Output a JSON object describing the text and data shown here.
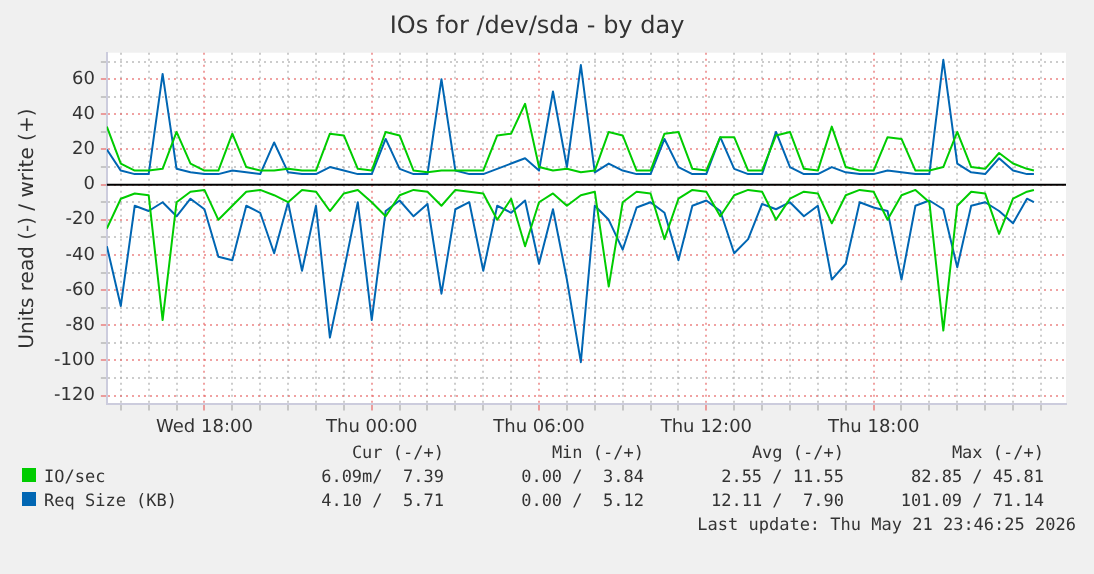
{
  "chart_data": {
    "type": "line",
    "title": "IOs for /dev/sda - by day",
    "ylabel": "Units read (-) / write (+)",
    "x": [
      "2026-05-20T14:30",
      "2026-05-20T15:00",
      "2026-05-20T15:30",
      "2026-05-20T16:00",
      "2026-05-20T16:30",
      "2026-05-20T17:00",
      "2026-05-20T17:30",
      "2026-05-20T18:00",
      "2026-05-20T18:30",
      "2026-05-20T19:00",
      "2026-05-20T19:30",
      "2026-05-20T20:00",
      "2026-05-20T20:30",
      "2026-05-20T21:00",
      "2026-05-20T21:30",
      "2026-05-20T22:00",
      "2026-05-20T22:30",
      "2026-05-20T23:00",
      "2026-05-20T23:30",
      "2026-05-21T00:00",
      "2026-05-21T00:30",
      "2026-05-21T01:00",
      "2026-05-21T01:30",
      "2026-05-21T02:00",
      "2026-05-21T02:30",
      "2026-05-21T03:00",
      "2026-05-21T03:30",
      "2026-05-21T04:00",
      "2026-05-21T04:30",
      "2026-05-21T05:00",
      "2026-05-21T05:30",
      "2026-05-21T06:00",
      "2026-05-21T06:30",
      "2026-05-21T07:00",
      "2026-05-21T07:30",
      "2026-05-21T08:00",
      "2026-05-21T08:30",
      "2026-05-21T09:00",
      "2026-05-21T09:30",
      "2026-05-21T10:00",
      "2026-05-21T10:30",
      "2026-05-21T11:00",
      "2026-05-21T11:30",
      "2026-05-21T12:00",
      "2026-05-21T12:30",
      "2026-05-21T13:00",
      "2026-05-21T13:30",
      "2026-05-21T14:00",
      "2026-05-21T14:30",
      "2026-05-21T15:00",
      "2026-05-21T15:30",
      "2026-05-21T16:00",
      "2026-05-21T16:30",
      "2026-05-21T17:00",
      "2026-05-21T17:30",
      "2026-05-21T18:00",
      "2026-05-21T18:30",
      "2026-05-21T19:00",
      "2026-05-21T19:30",
      "2026-05-21T20:00",
      "2026-05-21T20:30",
      "2026-05-21T21:00",
      "2026-05-21T21:30",
      "2026-05-21T22:00",
      "2026-05-21T22:30",
      "2026-05-21T23:00",
      "2026-05-21T23:30",
      "2026-05-21T23:45"
    ],
    "series": [
      {
        "name": "IO/sec",
        "color": "#00cc00",
        "values": [
          33,
          12,
          8,
          8,
          9,
          30,
          12,
          8,
          8,
          29,
          10,
          8,
          8,
          9,
          8,
          8,
          29,
          28,
          9,
          8,
          30,
          28,
          8,
          7,
          8,
          8,
          8,
          8,
          28,
          29,
          46,
          10,
          8,
          9,
          7,
          8,
          30,
          28,
          8,
          8,
          29,
          30,
          9,
          8,
          27,
          27,
          8,
          8,
          28,
          30,
          9,
          8,
          33,
          10,
          8,
          8,
          27,
          26,
          8,
          8,
          10,
          30,
          10,
          9,
          18,
          12,
          9,
          8
        ]
      },
      {
        "color": "#00cc00",
        "values": [
          -25,
          -8,
          -5,
          -6,
          -77,
          -10,
          -4,
          -3,
          -20,
          -12,
          -4,
          -3,
          -6,
          -10,
          -3,
          -4,
          -15,
          -5,
          -3,
          -10,
          -18,
          -6,
          -3,
          -4,
          -12,
          -3,
          -4,
          -5,
          -20,
          -8,
          -35,
          -10,
          -5,
          -12,
          -6,
          -4,
          -58,
          -10,
          -4,
          -5,
          -31,
          -8,
          -3,
          -4,
          -18,
          -6,
          -3,
          -4,
          -20,
          -8,
          -4,
          -5,
          -22,
          -6,
          -3,
          -4,
          -20,
          -6,
          -3,
          -10,
          -83,
          -12,
          -4,
          -5,
          -28,
          -8,
          -4,
          -3
        ]
      },
      {
        "name": "Req Size (KB)",
        "color": "#0066b3",
        "values": [
          20,
          8,
          6,
          6,
          63,
          9,
          7,
          6,
          6,
          8,
          7,
          6,
          24,
          7,
          6,
          6,
          10,
          8,
          6,
          6,
          26,
          9,
          6,
          6,
          60,
          8,
          6,
          6,
          9,
          12,
          15,
          8,
          53,
          10,
          68,
          7,
          12,
          8,
          6,
          6,
          26,
          10,
          6,
          6,
          27,
          9,
          6,
          6,
          30,
          10,
          6,
          6,
          10,
          7,
          6,
          6,
          8,
          7,
          6,
          6,
          71,
          12,
          7,
          6,
          15,
          8,
          6,
          6
        ]
      },
      {
        "color": "#0066b3",
        "values": [
          -35,
          -69,
          -12,
          -15,
          -10,
          -18,
          -8,
          -14,
          -41,
          -43,
          -12,
          -16,
          -39,
          -10,
          -49,
          -12,
          -87,
          -49,
          -10,
          -77,
          -15,
          -9,
          -18,
          -11,
          -62,
          -14,
          -10,
          -49,
          -12,
          -16,
          -9,
          -45,
          -14,
          -54,
          -101,
          -12,
          -20,
          -37,
          -13,
          -10,
          -16,
          -43,
          -12,
          -9,
          -15,
          -39,
          -31,
          -11,
          -14,
          -10,
          -18,
          -12,
          -54,
          -45,
          -10,
          -13,
          -15,
          -54,
          -12,
          -9,
          -14,
          -47,
          -12,
          -10,
          -15,
          -22,
          -8,
          -10
        ]
      }
    ],
    "xlim": [
      "2026-05-20T14:30",
      "2026-05-22T00:54"
    ],
    "xticks": [
      {
        "value": "2026-05-20T15:00",
        "label": null
      },
      {
        "value": "2026-05-20T16:00",
        "label": null
      },
      {
        "value": "2026-05-20T17:00",
        "label": null
      },
      {
        "value": "2026-05-20T18:00",
        "label": "Wed 18:00"
      },
      {
        "value": "2026-05-20T19:00",
        "label": null
      },
      {
        "value": "2026-05-20T20:00",
        "label": null
      },
      {
        "value": "2026-05-20T21:00",
        "label": null
      },
      {
        "value": "2026-05-20T22:00",
        "label": null
      },
      {
        "value": "2026-05-20T23:00",
        "label": null
      },
      {
        "value": "2026-05-21T00:00",
        "label": "Thu 00:00"
      },
      {
        "value": "2026-05-21T01:00",
        "label": null
      },
      {
        "value": "2026-05-21T02:00",
        "label": null
      },
      {
        "value": "2026-05-21T03:00",
        "label": null
      },
      {
        "value": "2026-05-21T04:00",
        "label": null
      },
      {
        "value": "2026-05-21T05:00",
        "label": null
      },
      {
        "value": "2026-05-21T06:00",
        "label": "Thu 06:00"
      },
      {
        "value": "2026-05-21T07:00",
        "label": null
      },
      {
        "value": "2026-05-21T08:00",
        "label": null
      },
      {
        "value": "2026-05-21T09:00",
        "label": null
      },
      {
        "value": "2026-05-21T10:00",
        "label": null
      },
      {
        "value": "2026-05-21T11:00",
        "label": null
      },
      {
        "value": "2026-05-21T12:00",
        "label": "Thu 12:00"
      },
      {
        "value": "2026-05-21T13:00",
        "label": null
      },
      {
        "value": "2026-05-21T14:00",
        "label": null
      },
      {
        "value": "2026-05-21T15:00",
        "label": null
      },
      {
        "value": "2026-05-21T16:00",
        "label": null
      },
      {
        "value": "2026-05-21T17:00",
        "label": null
      },
      {
        "value": "2026-05-21T18:00",
        "label": "Thu 18:00"
      },
      {
        "value": "2026-05-21T19:00",
        "label": null
      },
      {
        "value": "2026-05-21T20:00",
        "label": null
      },
      {
        "value": "2026-05-21T21:00",
        "label": null
      },
      {
        "value": "2026-05-21T22:00",
        "label": null
      },
      {
        "value": "2026-05-21T23:00",
        "label": null
      },
      {
        "value": "2026-05-22T00:00",
        "label": null
      }
    ],
    "ylim": [
      -125,
      75
    ],
    "yticks": [
      -120,
      {
        "value": -110,
        "label": null
      },
      -100,
      {
        "value": -90,
        "label": null
      },
      -80,
      {
        "value": -70,
        "label": null
      },
      -60,
      {
        "value": -50,
        "label": null
      },
      -40,
      {
        "value": -30,
        "label": null
      },
      -20,
      {
        "value": -10,
        "label": null
      },
      0,
      {
        "value": 10,
        "label": null
      },
      20,
      {
        "value": 30,
        "label": null
      },
      40,
      {
        "value": 50,
        "label": null
      },
      60,
      {
        "value": 70,
        "label": null
      }
    ],
    "ref_lines": [
      {
        "axis": "y",
        "value": 0,
        "color": "#000000"
      }
    ],
    "grid": true,
    "legend": "bottom",
    "marker": "none",
    "line_style": "solid",
    "annotations": [
      "Cur (-/+)",
      "Min (-/+)",
      "Avg (-/+)",
      "Max (-/+)",
      "6.09m/  7.39",
      "0.00 /  3.84",
      "2.55 / 11.55",
      "82.85 / 45.81",
      "4.10 /  5.71",
      "0.00 /  5.12",
      "12.11 /  7.90",
      "101.09 / 71.14",
      "Last update: Thu May 21 23:46:25 2026"
    ]
  }
}
